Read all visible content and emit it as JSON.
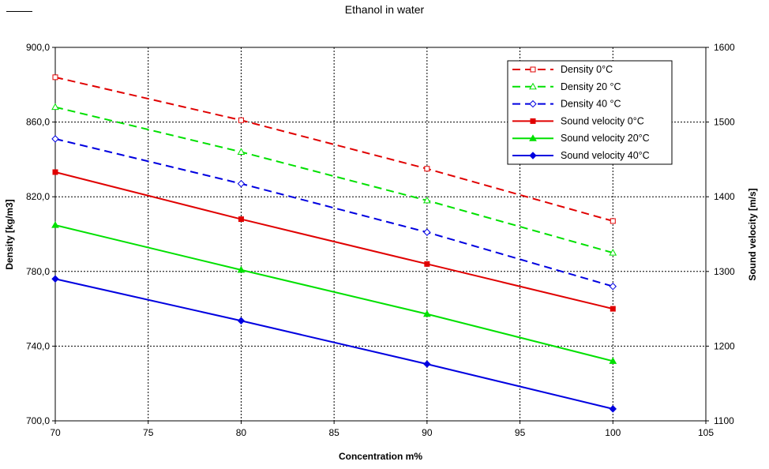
{
  "chart_data": {
    "type": "line",
    "title": "Ethanol in water",
    "xlabel": "Concentration m%",
    "ylabel": "Density [kg/m3]",
    "y2label": "Sound velocity [m/s]",
    "xlim": [
      70,
      105
    ],
    "ylim": [
      700,
      900
    ],
    "y2lim": [
      1100,
      1600
    ],
    "x_ticks": [
      "70",
      "75",
      "80",
      "85",
      "90",
      "95",
      "100",
      "105"
    ],
    "y_ticks": [
      "700,0",
      "740,0",
      "780,0",
      "820,0",
      "860,0",
      "900,0"
    ],
    "y2_ticks": [
      "1100",
      "1200",
      "1300",
      "1400",
      "1500",
      "1600"
    ],
    "grid": true,
    "legend_position": "top-right",
    "x": [
      70,
      80,
      90,
      100
    ],
    "series": [
      {
        "name": "Density 0°C",
        "axis": "left",
        "values": [
          884,
          861,
          835,
          807
        ],
        "color": "#e00000",
        "dashed": true,
        "marker": "square-open"
      },
      {
        "name": "Density 20 °C",
        "axis": "left",
        "values": [
          868,
          844,
          818,
          790
        ],
        "color": "#00e000",
        "dashed": true,
        "marker": "triangle-open"
      },
      {
        "name": "Density 40 °C",
        "axis": "left",
        "values": [
          851,
          827,
          801,
          772
        ],
        "color": "#0000e0",
        "dashed": true,
        "marker": "diamond-open"
      },
      {
        "name": "Sound velocity 0°C",
        "axis": "right",
        "values": [
          1433,
          1370,
          1310,
          1250
        ],
        "color": "#e00000",
        "dashed": false,
        "marker": "square"
      },
      {
        "name": "Sound velocity 20°C",
        "axis": "right",
        "values": [
          1362,
          1302,
          1243,
          1180
        ],
        "color": "#00e000",
        "dashed": false,
        "marker": "triangle"
      },
      {
        "name": "Sound velocity 40°C",
        "axis": "right",
        "values": [
          1290,
          1234,
          1176,
          1116
        ],
        "color": "#0000e0",
        "dashed": false,
        "marker": "diamond"
      }
    ]
  }
}
